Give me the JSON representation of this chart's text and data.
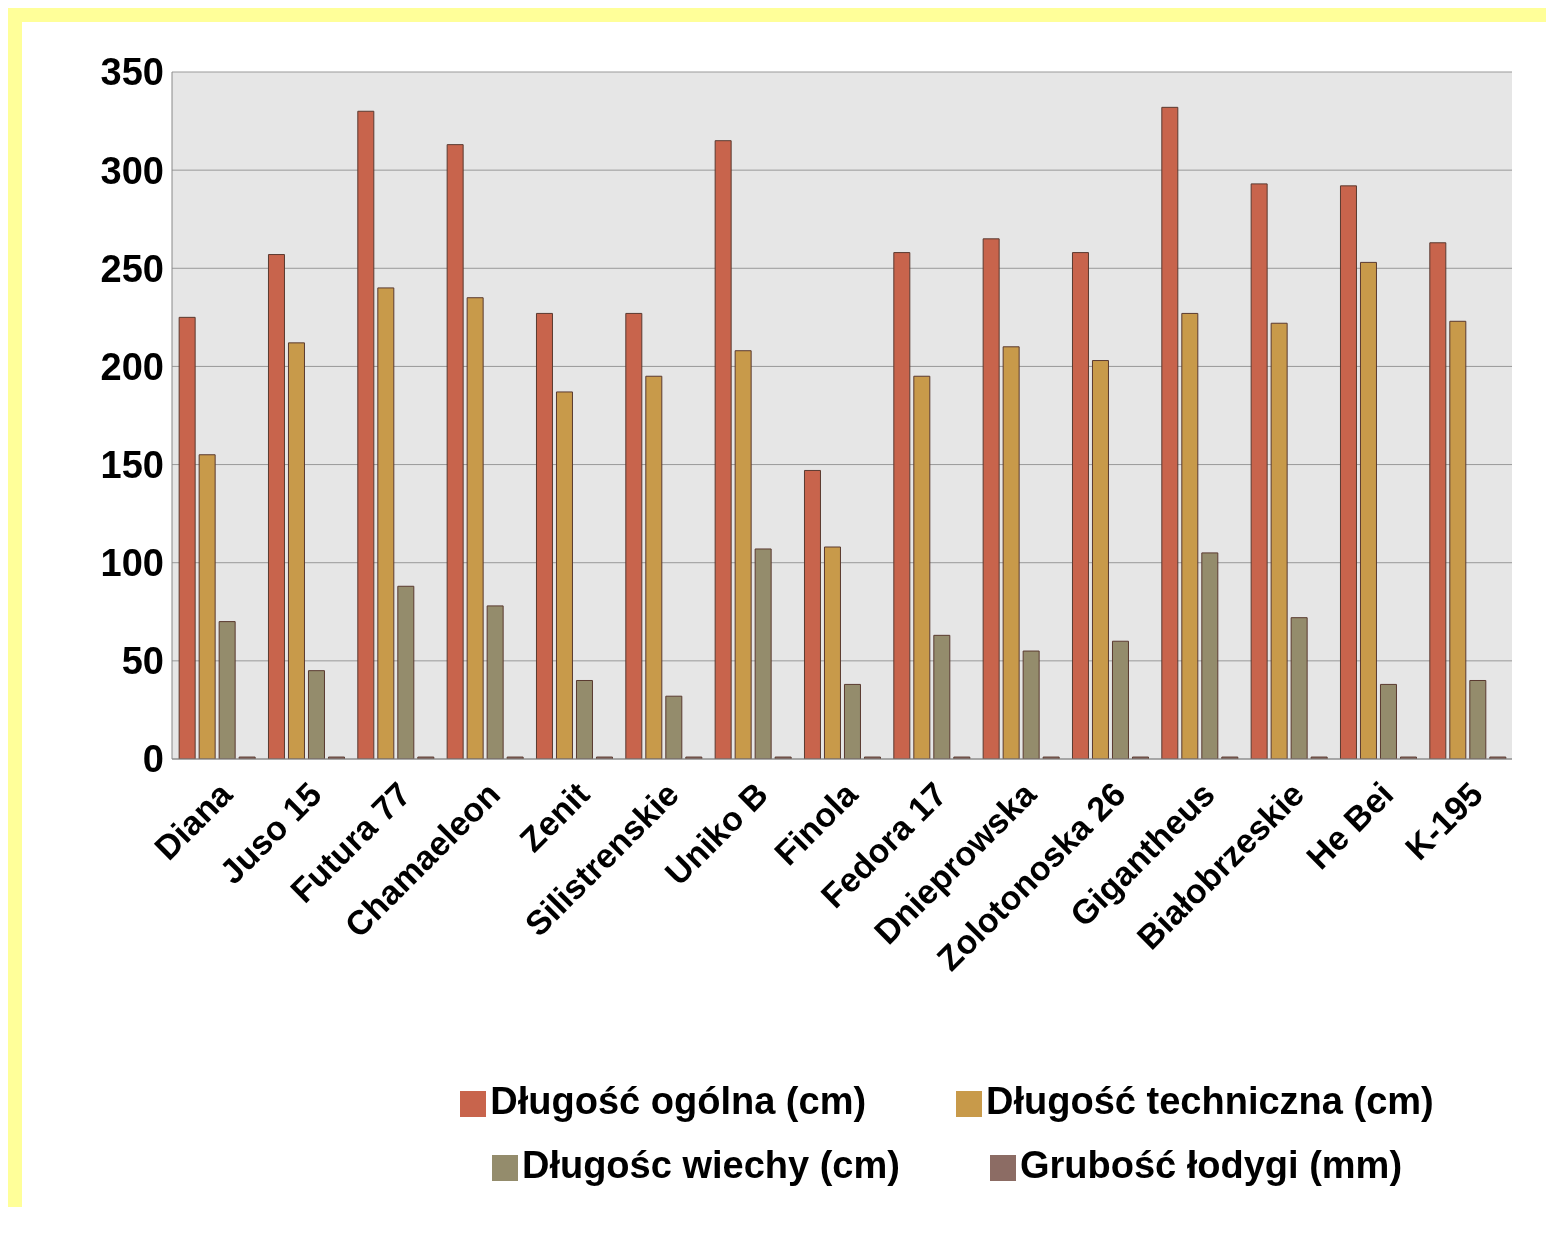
{
  "chart_data": {
    "type": "bar",
    "categories": [
      "Diana",
      "Juso 15",
      "Futura 77",
      "Chamaeleon",
      "Zenit",
      "Silistrenskie",
      "Uniko B",
      "Finola",
      "Fedora 17",
      "Dnieprowska",
      "Zolotonoska 26",
      "Gigantheus",
      "Białobrzeskie",
      "He Bei",
      "K-195"
    ],
    "series": [
      {
        "name": "Długość ogólna (cm)",
        "color": "#c8644c",
        "values": [
          225,
          257,
          330,
          313,
          227,
          227,
          315,
          147,
          258,
          265,
          258,
          332,
          293,
          292,
          263
        ]
      },
      {
        "name": "Długość techniczna (cm)",
        "color": "#c89a4a",
        "values": [
          155,
          212,
          240,
          235,
          187,
          195,
          208,
          108,
          195,
          210,
          203,
          227,
          222,
          253,
          223
        ]
      },
      {
        "name": "Długośc wiechy (cm)",
        "color": "#948c6c",
        "values": [
          70,
          45,
          88,
          78,
          40,
          32,
          107,
          38,
          63,
          55,
          60,
          105,
          72,
          38,
          40
        ]
      },
      {
        "name": "Grubość łodygi (mm)",
        "color": "#8c6c64",
        "values": [
          1,
          1,
          1,
          1,
          1,
          1,
          1,
          1,
          1,
          1,
          1,
          1,
          1,
          1,
          1
        ]
      }
    ],
    "ylim": [
      0,
      350
    ],
    "yticks": [
      0,
      50,
      100,
      150,
      200,
      250,
      300,
      350
    ],
    "grid": "y",
    "legend": "bottom"
  }
}
